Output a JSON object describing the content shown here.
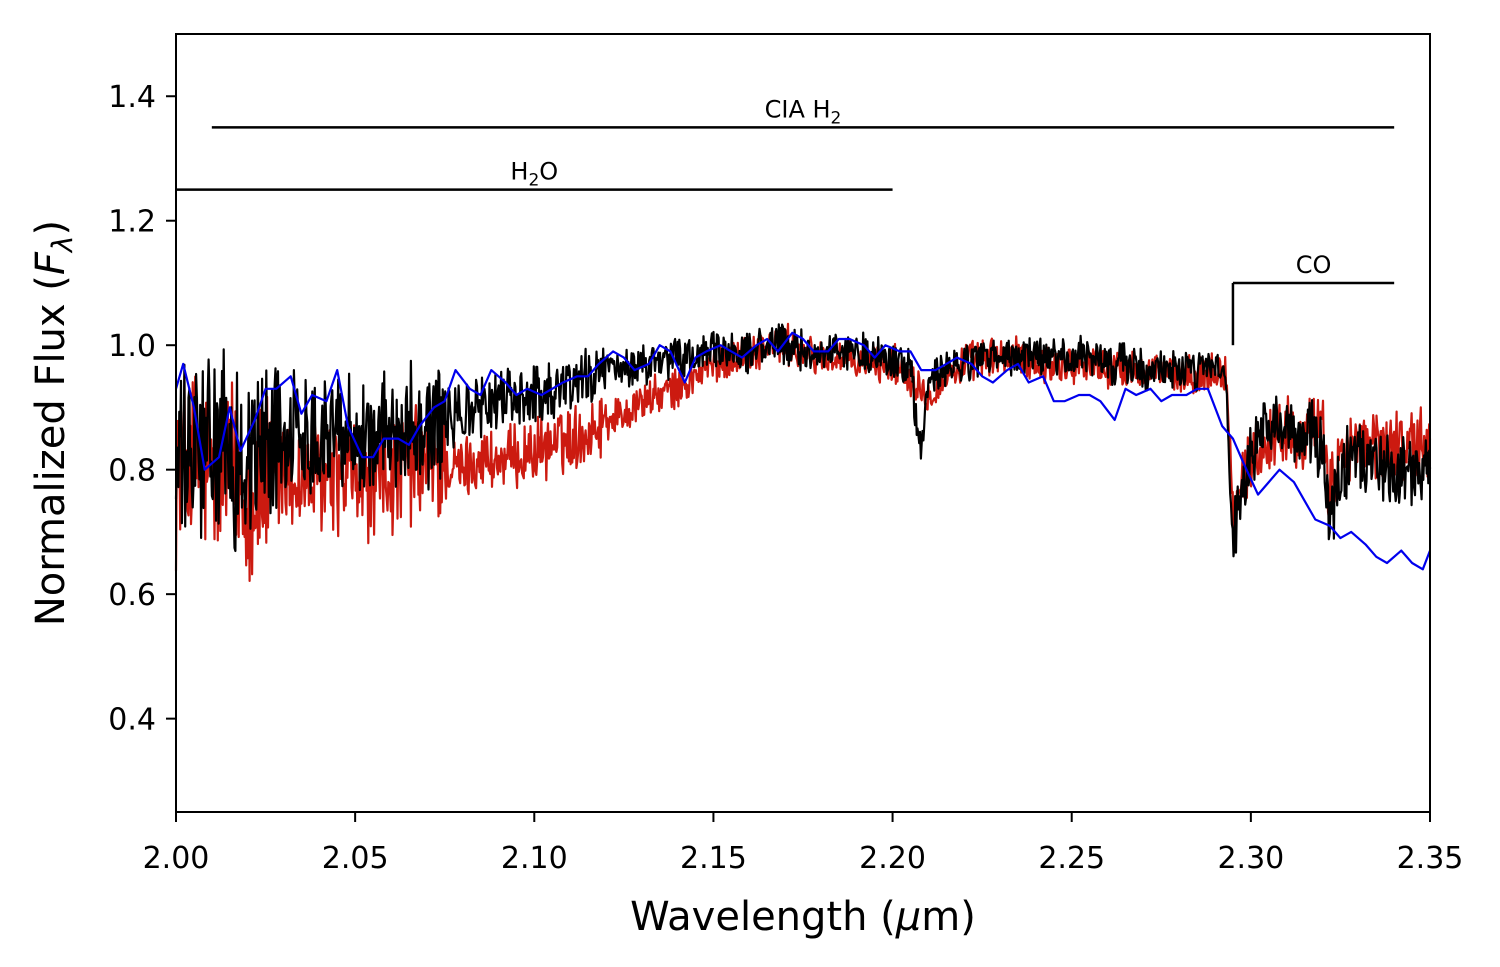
{
  "chart_data": {
    "type": "line",
    "xlabel": {
      "main": "Wavelength (",
      "mu": "μ",
      "unit": "m)"
    },
    "ylabel": {
      "main": "Normalized Flux (",
      "F": "F",
      "sub": "λ",
      "close": ")"
    },
    "xlim": [
      2.0,
      2.35
    ],
    "ylim": [
      0.25,
      1.5
    ],
    "xticks": [
      2.0,
      2.05,
      2.1,
      2.15,
      2.2,
      2.25,
      2.3,
      2.35
    ],
    "xtick_labels": [
      "2.00",
      "2.05",
      "2.10",
      "2.15",
      "2.20",
      "2.25",
      "2.30",
      "2.35"
    ],
    "yticks": [
      0.4,
      0.6,
      0.8,
      1.0,
      1.2,
      1.4
    ],
    "ytick_labels": [
      "0.4",
      "0.6",
      "0.8",
      "1.0",
      "1.2",
      "1.4"
    ],
    "grid": false,
    "legend": "none",
    "series": [
      {
        "color": "#cc1a10",
        "noise": "high",
        "x": [
          2.0,
          2.005,
          2.01,
          2.015,
          2.02,
          2.025,
          2.03,
          2.035,
          2.04,
          2.045,
          2.05,
          2.055,
          2.06,
          2.065,
          2.07,
          2.075,
          2.08,
          2.085,
          2.09,
          2.095,
          2.1,
          2.105,
          2.11,
          2.115,
          2.12,
          2.125,
          2.13,
          2.135,
          2.14,
          2.145,
          2.15,
          2.155,
          2.16,
          2.165,
          2.17,
          2.175,
          2.18,
          2.185,
          2.19,
          2.195,
          2.2,
          2.205,
          2.21,
          2.215,
          2.22,
          2.225,
          2.23,
          2.235,
          2.24,
          2.245,
          2.25,
          2.255,
          2.26,
          2.265,
          2.27,
          2.275,
          2.28,
          2.285,
          2.29,
          2.293,
          2.295,
          2.3,
          2.305,
          2.31,
          2.315,
          2.32,
          2.322,
          2.325,
          2.33,
          2.335,
          2.34,
          2.345,
          2.35
        ],
        "y": [
          0.8,
          0.82,
          0.78,
          0.8,
          0.76,
          0.77,
          0.8,
          0.78,
          0.78,
          0.78,
          0.79,
          0.78,
          0.79,
          0.8,
          0.81,
          0.8,
          0.8,
          0.82,
          0.81,
          0.82,
          0.83,
          0.84,
          0.85,
          0.86,
          0.88,
          0.89,
          0.91,
          0.92,
          0.93,
          0.95,
          0.97,
          0.98,
          0.99,
          1.0,
          1.0,
          0.99,
          0.98,
          0.98,
          0.97,
          0.97,
          0.97,
          0.95,
          0.92,
          0.95,
          0.97,
          0.98,
          0.98,
          0.98,
          0.97,
          0.97,
          0.97,
          0.97,
          0.96,
          0.96,
          0.96,
          0.96,
          0.95,
          0.95,
          0.96,
          0.96,
          0.74,
          0.82,
          0.85,
          0.86,
          0.86,
          0.86,
          0.76,
          0.83,
          0.84,
          0.84,
          0.84,
          0.84,
          0.84
        ]
      },
      {
        "color": "#000000",
        "noise": "high",
        "x": [
          2.0,
          2.005,
          2.01,
          2.015,
          2.02,
          2.025,
          2.03,
          2.035,
          2.04,
          2.045,
          2.05,
          2.055,
          2.06,
          2.065,
          2.07,
          2.075,
          2.08,
          2.085,
          2.09,
          2.095,
          2.1,
          2.105,
          2.11,
          2.115,
          2.12,
          2.125,
          2.13,
          2.135,
          2.14,
          2.145,
          2.15,
          2.155,
          2.16,
          2.165,
          2.17,
          2.175,
          2.18,
          2.185,
          2.19,
          2.195,
          2.2,
          2.205,
          2.208,
          2.21,
          2.215,
          2.22,
          2.225,
          2.23,
          2.235,
          2.24,
          2.245,
          2.25,
          2.255,
          2.26,
          2.265,
          2.27,
          2.275,
          2.28,
          2.285,
          2.29,
          2.293,
          2.295,
          2.3,
          2.305,
          2.31,
          2.315,
          2.32,
          2.322,
          2.325,
          2.33,
          2.335,
          2.34,
          2.345,
          2.35
        ],
        "y": [
          0.8,
          0.82,
          0.84,
          0.82,
          0.81,
          0.84,
          0.86,
          0.86,
          0.86,
          0.87,
          0.86,
          0.85,
          0.86,
          0.88,
          0.87,
          0.88,
          0.89,
          0.9,
          0.91,
          0.92,
          0.92,
          0.93,
          0.94,
          0.95,
          0.96,
          0.96,
          0.97,
          0.97,
          0.98,
          0.98,
          0.99,
          0.99,
          0.99,
          1.0,
          1.0,
          0.99,
          0.99,
          0.99,
          0.99,
          0.98,
          0.98,
          0.96,
          0.82,
          0.94,
          0.96,
          0.97,
          0.98,
          0.98,
          0.98,
          0.98,
          0.98,
          0.98,
          0.98,
          0.97,
          0.97,
          0.96,
          0.96,
          0.96,
          0.96,
          0.96,
          0.95,
          0.68,
          0.82,
          0.86,
          0.86,
          0.86,
          0.84,
          0.7,
          0.8,
          0.82,
          0.81,
          0.8,
          0.8,
          0.79
        ]
      },
      {
        "color": "#0000ee",
        "noise": "none",
        "x": [
          2.0,
          2.002,
          2.005,
          2.008,
          2.012,
          2.015,
          2.018,
          2.022,
          2.025,
          2.028,
          2.032,
          2.035,
          2.038,
          2.042,
          2.045,
          2.048,
          2.052,
          2.055,
          2.058,
          2.062,
          2.065,
          2.068,
          2.072,
          2.075,
          2.078,
          2.082,
          2.085,
          2.088,
          2.092,
          2.095,
          2.098,
          2.102,
          2.105,
          2.108,
          2.112,
          2.115,
          2.118,
          2.122,
          2.125,
          2.128,
          2.132,
          2.135,
          2.138,
          2.142,
          2.145,
          2.148,
          2.152,
          2.155,
          2.158,
          2.162,
          2.165,
          2.168,
          2.172,
          2.175,
          2.178,
          2.182,
          2.185,
          2.188,
          2.192,
          2.195,
          2.198,
          2.202,
          2.205,
          2.208,
          2.212,
          2.215,
          2.218,
          2.222,
          2.225,
          2.228,
          2.232,
          2.235,
          2.238,
          2.242,
          2.245,
          2.248,
          2.252,
          2.255,
          2.258,
          2.262,
          2.265,
          2.268,
          2.272,
          2.275,
          2.278,
          2.282,
          2.285,
          2.288,
          2.292,
          2.295,
          2.298,
          2.302,
          2.305,
          2.308,
          2.312,
          2.315,
          2.318,
          2.322,
          2.325,
          2.328,
          2.332,
          2.335,
          2.338,
          2.342,
          2.345,
          2.348,
          2.35
        ],
        "y": [
          0.93,
          0.97,
          0.9,
          0.8,
          0.82,
          0.9,
          0.83,
          0.88,
          0.93,
          0.93,
          0.95,
          0.89,
          0.92,
          0.91,
          0.96,
          0.87,
          0.82,
          0.82,
          0.85,
          0.85,
          0.84,
          0.87,
          0.9,
          0.91,
          0.96,
          0.93,
          0.92,
          0.96,
          0.94,
          0.92,
          0.93,
          0.92,
          0.93,
          0.94,
          0.95,
          0.95,
          0.97,
          0.99,
          0.98,
          0.96,
          0.97,
          1.0,
          0.99,
          0.94,
          0.98,
          0.99,
          1.0,
          0.99,
          0.98,
          1.0,
          1.01,
          0.99,
          1.02,
          1.01,
          0.99,
          0.99,
          1.01,
          1.01,
          1.0,
          0.98,
          1.0,
          0.99,
          0.99,
          0.96,
          0.96,
          0.97,
          0.98,
          0.97,
          0.95,
          0.94,
          0.96,
          0.97,
          0.94,
          0.95,
          0.91,
          0.91,
          0.92,
          0.92,
          0.91,
          0.88,
          0.93,
          0.92,
          0.93,
          0.91,
          0.92,
          0.92,
          0.93,
          0.93,
          0.87,
          0.85,
          0.81,
          0.76,
          0.78,
          0.8,
          0.78,
          0.75,
          0.72,
          0.71,
          0.69,
          0.7,
          0.68,
          0.66,
          0.65,
          0.67,
          0.65,
          0.64,
          0.67
        ]
      }
    ],
    "annotations": [
      {
        "text": "CIA H",
        "sub": "2",
        "tail": "",
        "x_range": [
          2.01,
          2.34
        ],
        "y": 1.35
      },
      {
        "text": "H",
        "sub": "2",
        "tail": "O",
        "x_range": [
          2.0,
          2.2
        ],
        "y": 1.25
      },
      {
        "text": "CO",
        "sub": "",
        "tail": "",
        "x_range": [
          2.295,
          2.34
        ],
        "y": 1.1,
        "drop_to": 1.0
      }
    ]
  }
}
